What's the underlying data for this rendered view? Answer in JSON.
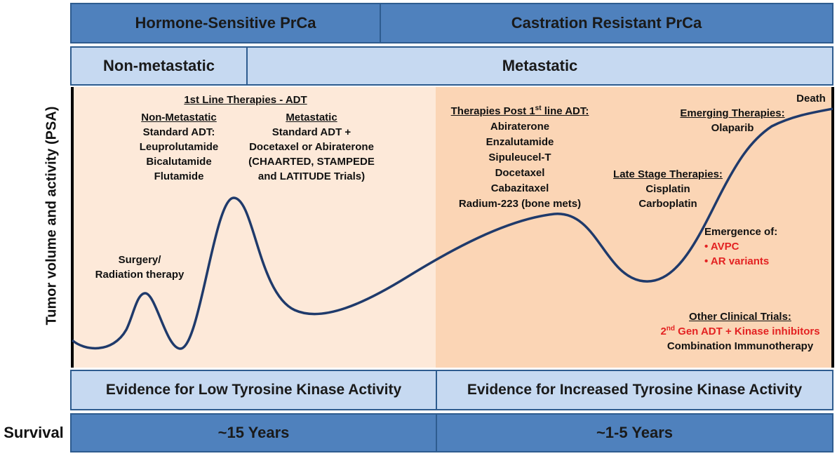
{
  "header": {
    "hormone_sensitive": "Hormone-Sensitive PrCa",
    "castration_resistant": "Castration Resistant PrCa",
    "non_metastatic": "Non-metastatic",
    "metastatic": "Metastatic"
  },
  "y_axis_label": "Tumor volume and activity (PSA)",
  "annotations": {
    "surgery": [
      "Surgery/",
      "Radiation therapy"
    ],
    "first_line_title": "1st Line Therapies - ADT",
    "nonmet_heading": "Non-Metastatic",
    "nonmet_items": [
      "Standard ADT:",
      "Leuprolutamide",
      "Bicalutamide",
      "Flutamide"
    ],
    "met_heading": "Metastatic",
    "met_items": [
      "Standard ADT +",
      "Docetaxel or Abiraterone",
      "(CHAARTED, STAMPEDE",
      "and LATITUDE Trials)"
    ],
    "post_first_line_prefix": "Therapies Post 1",
    "post_first_line_sup": "st",
    "post_first_line_suffix": " line ADT:",
    "post_items": [
      "Abiraterone",
      "Enzalutamide",
      "Sipuleucel-T",
      "Docetaxel",
      "Cabazitaxel",
      "Radium-223 (bone mets)"
    ],
    "emerging_heading": "Emerging Therapies:",
    "emerging_items": [
      "Olaparib"
    ],
    "death": "Death",
    "late_stage_heading": "Late Stage Therapies:",
    "late_stage_items": [
      "Cisplatin",
      "Carboplatin"
    ],
    "emergence_heading": "Emergence of:",
    "emergence_items": [
      "• AVPC",
      "• AR variants"
    ],
    "other_trials_heading": "Other Clinical Trials:",
    "other_trials_red_sup": "nd",
    "other_trials_red_prefix": "2",
    "other_trials_red_suffix": " Gen ADT + Kinase inhibitors",
    "other_trials_black": "Combination Immunotherapy"
  },
  "footer": {
    "low_kinase": "Evidence for Low Tyrosine Kinase Activity",
    "high_kinase": "Evidence for Increased Tyrosine Kinase Activity",
    "survival_label": "Survival",
    "survival_early": "~15 Years",
    "survival_late": "~1-5 Years"
  },
  "colors": {
    "dark_blue": "#4f81bd",
    "light_blue": "#c6d9f1",
    "peach_light": "#fde9d9",
    "peach_dark": "#fbd5b5",
    "curve": "#1f3a6b",
    "red": "#e32222"
  }
}
